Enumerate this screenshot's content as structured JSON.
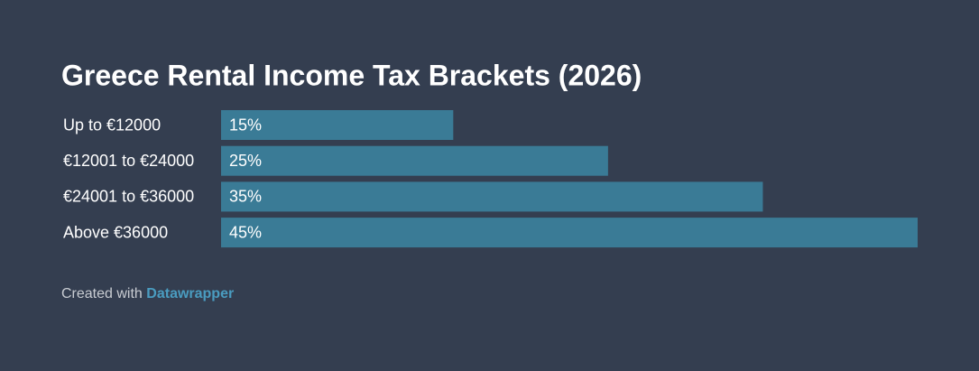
{
  "chart_data": {
    "type": "hbar",
    "title": "Greece Rental Income Tax Brackets (2026)",
    "categories": [
      "Up to €12000",
      "€12001 to €24000",
      "€24001 to €36000",
      "Above €36000"
    ],
    "values": [
      15,
      25,
      35,
      45
    ],
    "value_labels": [
      "15%",
      "25%",
      "35%",
      "45%"
    ],
    "color": "#3a7b96",
    "xlim": [
      0,
      45
    ],
    "credit_prefix": "Created with",
    "credit_source": "Datawrapper"
  }
}
